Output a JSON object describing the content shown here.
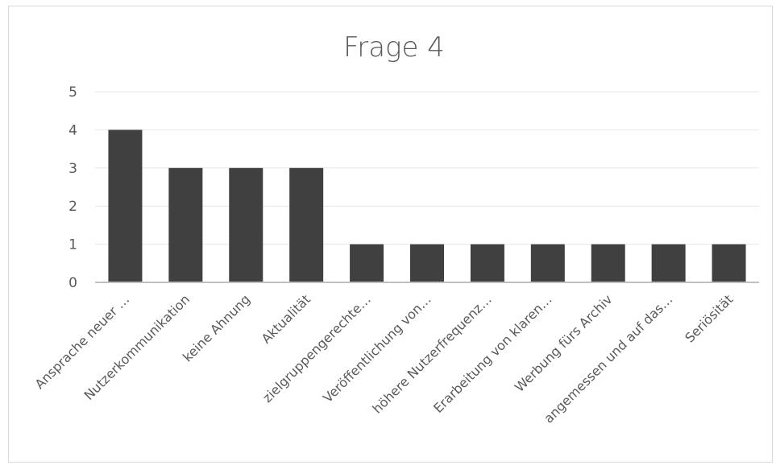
{
  "chart_data": {
    "type": "bar",
    "title": "Frage 4",
    "categories": [
      "Ansprache neuer …",
      "Nutzerkommunikation",
      "keine Ahnung",
      "Aktualität",
      "zielgruppengerechte…",
      "Veröffentlichung von…",
      "höhere Nutzerfrequenz…",
      "Erarbeitung von klaren…",
      "Werbung fürs Archiv",
      "angemessen und auf das…",
      "Seriösität"
    ],
    "values": [
      4,
      3,
      3,
      3,
      1,
      1,
      1,
      1,
      1,
      1,
      1
    ],
    "ylim": [
      0,
      5
    ],
    "yticks": [
      0,
      1,
      2,
      3,
      4,
      5
    ],
    "grid": true,
    "legend": "none",
    "colors": {
      "bar": "#404040",
      "grid": "#e6e6e6",
      "axis": "#bfbfbf",
      "text": "#595959",
      "border": "#d9d9d9"
    }
  }
}
